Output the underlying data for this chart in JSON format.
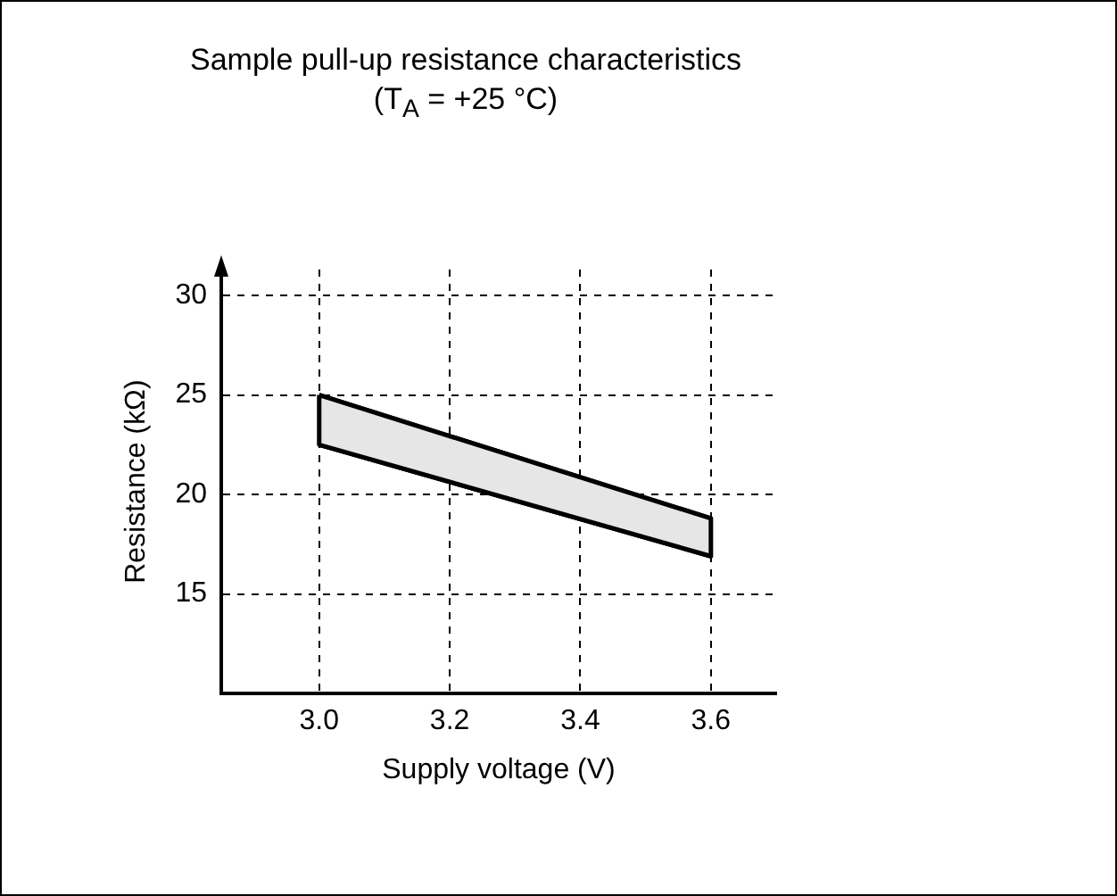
{
  "chart_data": {
    "type": "line",
    "title": "Sample pull-up resistance characteristics",
    "subtitle": "(T$_{A}$ = +25 °C)",
    "xlabel": "Supply voltage (V)",
    "ylabel": "Resistance (kΩ)",
    "x": [
      3.0,
      3.6
    ],
    "series": [
      {
        "color": "#000000",
        "values": [
          25,
          18.8
        ],
        "lower": [
          22.5,
          16.9
        ],
        "upper": [
          25,
          18.8
        ]
      },
      {
        "color": "#000000",
        "values": [
          22.5,
          16.9
        ]
      }
    ],
    "xlim": [
      2.85,
      3.7
    ],
    "xticks": [
      {
        "value": 3.0,
        "label": "3.0"
      },
      {
        "value": 3.2,
        "label": "3.2"
      },
      {
        "value": 3.4,
        "label": "3.4"
      },
      {
        "value": 3.6,
        "label": "3.6"
      }
    ],
    "ylim": [
      10,
      31.3
    ],
    "yticks": [
      15,
      20,
      25,
      30
    ],
    "grid": true,
    "legend": false
  }
}
